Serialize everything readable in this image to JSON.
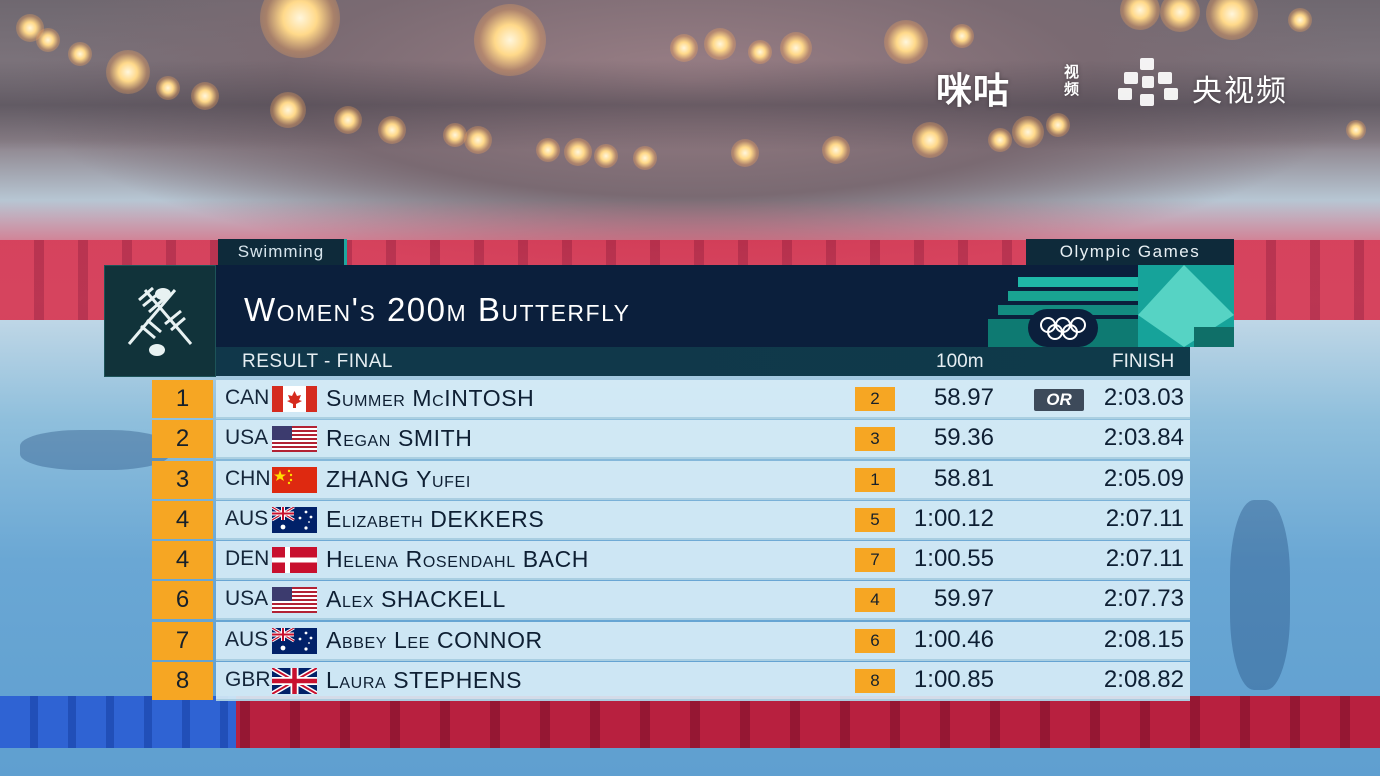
{
  "watermarks": {
    "migu": "咪咕",
    "migu_sub": "视频",
    "cctv": "央视频"
  },
  "event": {
    "sport": "Swimming",
    "brand": "Olympic Games",
    "title": "Women's 200m Butterfly",
    "stage": "RESULT - FINAL",
    "col_split": "100m",
    "col_finish": "FINISH"
  },
  "colors": {
    "rank_badge": "#f6a623",
    "title_bar": "#0b1f3c",
    "row_bg": "#d6ecf6"
  },
  "results": [
    {
      "rank": "1",
      "nat": "CAN",
      "flag": "canada",
      "name": "Summer McINTOSH",
      "split_pos": "2",
      "split": "58.97",
      "record": "OR",
      "finish": "2:03.03"
    },
    {
      "rank": "2",
      "nat": "USA",
      "flag": "usa",
      "name": "Regan SMITH",
      "split_pos": "3",
      "split": "59.36",
      "record": "",
      "finish": "2:03.84"
    },
    {
      "rank": "3",
      "nat": "CHN",
      "flag": "china",
      "name": "ZHANG Yufei",
      "split_pos": "1",
      "split": "58.81",
      "record": "",
      "finish": "2:05.09"
    },
    {
      "rank": "4",
      "nat": "AUS",
      "flag": "australia",
      "name": "Elizabeth DEKKERS",
      "split_pos": "5",
      "split": "1:00.12",
      "record": "",
      "finish": "2:07.11"
    },
    {
      "rank": "4",
      "nat": "DEN",
      "flag": "denmark",
      "name": "Helena Rosendahl BACH",
      "split_pos": "7",
      "split": "1:00.55",
      "record": "",
      "finish": "2:07.11"
    },
    {
      "rank": "6",
      "nat": "USA",
      "flag": "usa",
      "name": "Alex SHACKELL",
      "split_pos": "4",
      "split": "59.97",
      "record": "",
      "finish": "2:07.73"
    },
    {
      "rank": "7",
      "nat": "AUS",
      "flag": "australia",
      "name": "Abbey Lee CONNOR",
      "split_pos": "6",
      "split": "1:00.46",
      "record": "",
      "finish": "2:08.15"
    },
    {
      "rank": "8",
      "nat": "GBR",
      "flag": "uk",
      "name": "Laura STEPHENS",
      "split_pos": "8",
      "split": "1:00.85",
      "record": "",
      "finish": "2:08.82"
    }
  ]
}
